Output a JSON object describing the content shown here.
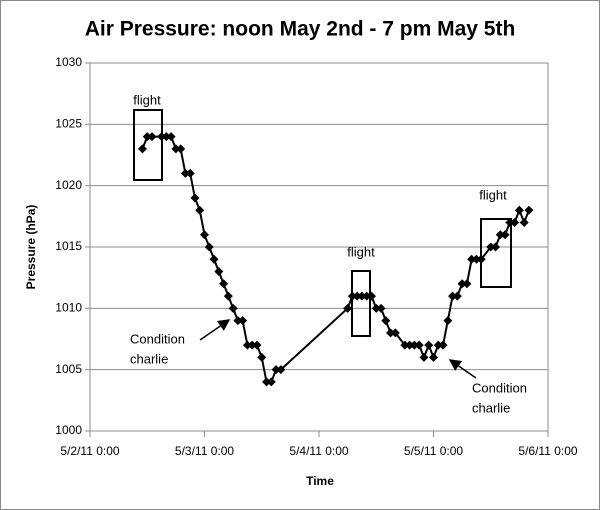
{
  "chart_data": {
    "type": "line",
    "title": "Air Pressure: noon May 2nd - 7 pm May 5th",
    "x_label": "Time",
    "y_label": "Pressure (hPa)",
    "x": [
      "5/2/11 11:00",
      "5/2/11 12:00",
      "5/2/11 13:00",
      "5/2/11 15:00",
      "5/2/11 16:00",
      "5/2/11 17:00",
      "5/2/11 18:00",
      "5/2/11 19:00",
      "5/2/11 20:00",
      "5/2/11 21:00",
      "5/2/11 22:00",
      "5/2/11 23:00",
      "5/3/11 0:00",
      "5/3/11 1:00",
      "5/3/11 2:00",
      "5/3/11 3:00",
      "5/3/11 4:00",
      "5/3/11 5:00",
      "5/3/11 6:00",
      "5/3/11 7:00",
      "5/3/11 8:00",
      "5/3/11 9:00",
      "5/3/11 10:00",
      "5/3/11 11:00",
      "5/3/11 12:00",
      "5/3/11 13:00",
      "5/3/11 14:00",
      "5/3/11 15:00",
      "5/3/11 16:00",
      "5/4/11 6:00",
      "5/4/11 7:00",
      "5/4/11 8:00",
      "5/4/11 9:00",
      "5/4/11 10:00",
      "5/4/11 11:00",
      "5/4/11 12:00",
      "5/4/11 13:00",
      "5/4/11 14:00",
      "5/4/11 15:00",
      "5/4/11 16:00",
      "5/4/11 18:00",
      "5/4/11 19:00",
      "5/4/11 20:00",
      "5/4/11 21:00",
      "5/4/11 22:00",
      "5/4/11 23:00",
      "5/5/11 0:00",
      "5/5/11 1:00",
      "5/5/11 2:00",
      "5/5/11 3:00",
      "5/5/11 4:00",
      "5/5/11 5:00",
      "5/5/11 6:00",
      "5/5/11 7:00",
      "5/5/11 8:00",
      "5/5/11 9:00",
      "5/5/11 10:00",
      "5/5/11 12:00",
      "5/5/11 13:00",
      "5/5/11 14:00",
      "5/5/11 15:00",
      "5/5/11 16:00",
      "5/5/11 17:00",
      "5/5/11 18:00",
      "5/5/11 19:00",
      "5/5/11 20:00"
    ],
    "series": [
      {
        "name": "Pressure",
        "color": "#000000",
        "values": [
          1023,
          1024,
          1024,
          1024,
          1024,
          1024,
          1023,
          1023,
          1021,
          1021,
          1019,
          1018,
          1016,
          1015,
          1014,
          1013,
          1012,
          1011,
          1010,
          1009,
          1009,
          1007,
          1007,
          1007,
          1006,
          1004,
          1004,
          1005,
          1005,
          1010,
          1011,
          1011,
          1011,
          1011,
          1011,
          1010,
          1010,
          1009,
          1008,
          1008,
          1007,
          1007,
          1007,
          1007,
          1006,
          1007,
          1006,
          1007,
          1007,
          1009,
          1011,
          1011,
          1012,
          1012,
          1014,
          1014,
          1014,
          1015,
          1015,
          1016,
          1016,
          1017,
          1017,
          1018,
          1017,
          1018
        ]
      }
    ],
    "xlim": [
      "5/2/11 0:00",
      "5/6/11 0:00"
    ],
    "xticks": [
      "5/2/11 0:00",
      "5/3/11 0:00",
      "5/4/11 0:00",
      "5/5/11 0:00",
      "5/6/11 0:00"
    ],
    "ylim": [
      1000,
      1030
    ],
    "yticks": [
      1000,
      1005,
      1010,
      1015,
      1020,
      1025,
      1030
    ],
    "grid": true,
    "annotations": [
      "flight",
      "flight",
      "flight",
      [
        "Condition",
        "charlie"
      ],
      [
        "Condition",
        "charlie"
      ]
    ]
  }
}
